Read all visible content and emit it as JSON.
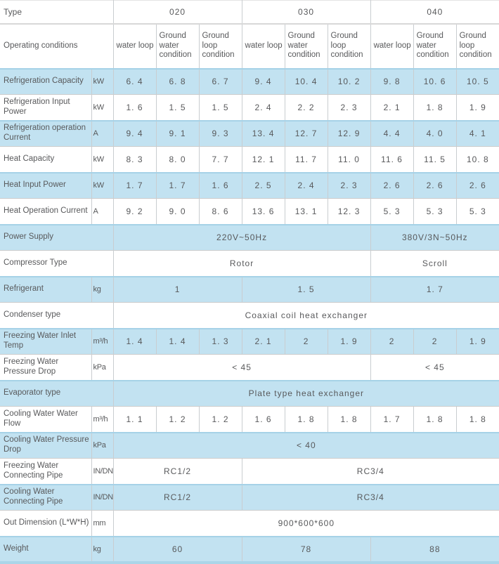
{
  "table": {
    "type_row": {
      "label": "Type",
      "models": [
        "020",
        "030",
        "040"
      ]
    },
    "conditions_row": {
      "label": "Operating conditions",
      "columns": [
        "water loop",
        "Ground water condition",
        "Ground loop condition",
        "water loop",
        "Ground water condition",
        "Ground loop condition",
        "water loop",
        "Ground water condition",
        "Ground loop condition"
      ]
    },
    "rows": [
      {
        "label": "Refrigeration Capacity",
        "unit": "kW",
        "cells": [
          [
            "6. 4",
            1
          ],
          [
            "6. 8",
            1
          ],
          [
            "6. 7",
            1
          ],
          [
            "9. 4",
            1
          ],
          [
            "10. 4",
            1
          ],
          [
            "10. 2",
            1
          ],
          [
            "9. 8",
            1
          ],
          [
            "10. 6",
            1
          ],
          [
            "10. 5",
            1
          ]
        ]
      },
      {
        "label": "Refrigeration Input Power",
        "unit": "kW",
        "cells": [
          [
            "1. 6",
            1
          ],
          [
            "1. 5",
            1
          ],
          [
            "1. 5",
            1
          ],
          [
            "2. 4",
            1
          ],
          [
            "2. 2",
            1
          ],
          [
            "2. 3",
            1
          ],
          [
            "2. 1",
            1
          ],
          [
            "1. 8",
            1
          ],
          [
            "1. 9",
            1
          ]
        ]
      },
      {
        "label": "Refrigeration operation Current",
        "unit": "A",
        "cells": [
          [
            "9. 4",
            1
          ],
          [
            "9. 1",
            1
          ],
          [
            "9. 3",
            1
          ],
          [
            "13. 4",
            1
          ],
          [
            "12. 7",
            1
          ],
          [
            "12. 9",
            1
          ],
          [
            "4. 4",
            1
          ],
          [
            "4. 0",
            1
          ],
          [
            "4. 1",
            1
          ]
        ]
      },
      {
        "label": "Heat Capacity",
        "unit": "kW",
        "cells": [
          [
            "8. 3",
            1
          ],
          [
            "8. 0",
            1
          ],
          [
            "7. 7",
            1
          ],
          [
            "12. 1",
            1
          ],
          [
            "11. 7",
            1
          ],
          [
            "11. 0",
            1
          ],
          [
            "11. 6",
            1
          ],
          [
            "11. 5",
            1
          ],
          [
            "10. 8",
            1
          ]
        ]
      },
      {
        "label": "Heat Input Power",
        "unit": "kW",
        "cells": [
          [
            "1. 7",
            1
          ],
          [
            "1. 7",
            1
          ],
          [
            "1. 6",
            1
          ],
          [
            "2. 5",
            1
          ],
          [
            "2. 4",
            1
          ],
          [
            "2. 3",
            1
          ],
          [
            "2. 6",
            1
          ],
          [
            "2. 6",
            1
          ],
          [
            "2. 6",
            1
          ]
        ]
      },
      {
        "label": "Heat Operation Current",
        "unit": "A",
        "cells": [
          [
            "9. 2",
            1
          ],
          [
            "9. 0",
            1
          ],
          [
            "8. 6",
            1
          ],
          [
            "13. 6",
            1
          ],
          [
            "13. 1",
            1
          ],
          [
            "12. 3",
            1
          ],
          [
            "5. 3",
            1
          ],
          [
            "5. 3",
            1
          ],
          [
            "5. 3",
            1
          ]
        ]
      },
      {
        "label": "Power Supply",
        "unit": null,
        "cells": [
          [
            "220V~50Hz",
            6
          ],
          [
            "380V/3N~50Hz",
            3
          ]
        ]
      },
      {
        "label": "Compressor Type",
        "unit": null,
        "cells": [
          [
            "Rotor",
            6
          ],
          [
            "Scroll",
            3
          ]
        ]
      },
      {
        "label": "Refrigerant",
        "unit": "kg",
        "cells": [
          [
            "1",
            3
          ],
          [
            "1. 5",
            3
          ],
          [
            "1. 7",
            3
          ]
        ]
      },
      {
        "label": "Condenser type",
        "unit": null,
        "cells": [
          [
            "Coaxial coil heat exchanger",
            9
          ]
        ]
      },
      {
        "label": "Freezing Water Inlet Temp",
        "unit": "m³/h",
        "cells": [
          [
            "1. 4",
            1
          ],
          [
            "1. 4",
            1
          ],
          [
            "1. 3",
            1
          ],
          [
            "2. 1",
            1
          ],
          [
            "2",
            1
          ],
          [
            "1. 9",
            1
          ],
          [
            "2",
            1
          ],
          [
            "2",
            1
          ],
          [
            "1. 9",
            1
          ]
        ]
      },
      {
        "label": "Freezing Water Pressure Drop",
        "unit": "kPa",
        "cells": [
          [
            "< 45",
            6
          ],
          [
            "< 45",
            3
          ]
        ]
      },
      {
        "label": "Evaporator type",
        "unit": null,
        "cells": [
          [
            "Plate type heat exchanger",
            9
          ]
        ]
      },
      {
        "label": "Cooling Water Water Flow",
        "unit": "m³/h",
        "cells": [
          [
            "1. 1",
            1
          ],
          [
            "1. 2",
            1
          ],
          [
            "1. 2",
            1
          ],
          [
            "1. 6",
            1
          ],
          [
            "1. 8",
            1
          ],
          [
            "1. 8",
            1
          ],
          [
            "1. 7",
            1
          ],
          [
            "1. 8",
            1
          ],
          [
            "1. 8",
            1
          ]
        ]
      },
      {
        "label": "Cooling Water Pressure Drop",
        "unit": "kPa",
        "cells": [
          [
            "< 40",
            9
          ]
        ]
      },
      {
        "label": "Freezing Water Connecting Pipe",
        "unit": "IN/DN",
        "cells": [
          [
            "RC1/2",
            3
          ],
          [
            "RC3/4",
            6
          ]
        ]
      },
      {
        "label": "Cooling Water Connecting Pipe",
        "unit": "IN/DN",
        "cells": [
          [
            "RC1/2",
            3
          ],
          [
            "RC3/4",
            6
          ]
        ]
      },
      {
        "label": "Out Dimension (L*W*H)",
        "unit": "mm",
        "cells": [
          [
            "900*600*600",
            9
          ]
        ]
      },
      {
        "label": "Weight",
        "unit": "kg",
        "cells": [
          [
            "60",
            3
          ],
          [
            "78",
            3
          ],
          [
            "88",
            3
          ]
        ]
      }
    ]
  },
  "colors": {
    "row_blue": "#c2e2f1",
    "row_white": "#ffffff",
    "border_blue": "#a6d2e7",
    "grid_line": "#c9cdd0",
    "header_line": "#d8d8d8",
    "text": "#58595b",
    "bottom_edge": "#abd5e8"
  }
}
